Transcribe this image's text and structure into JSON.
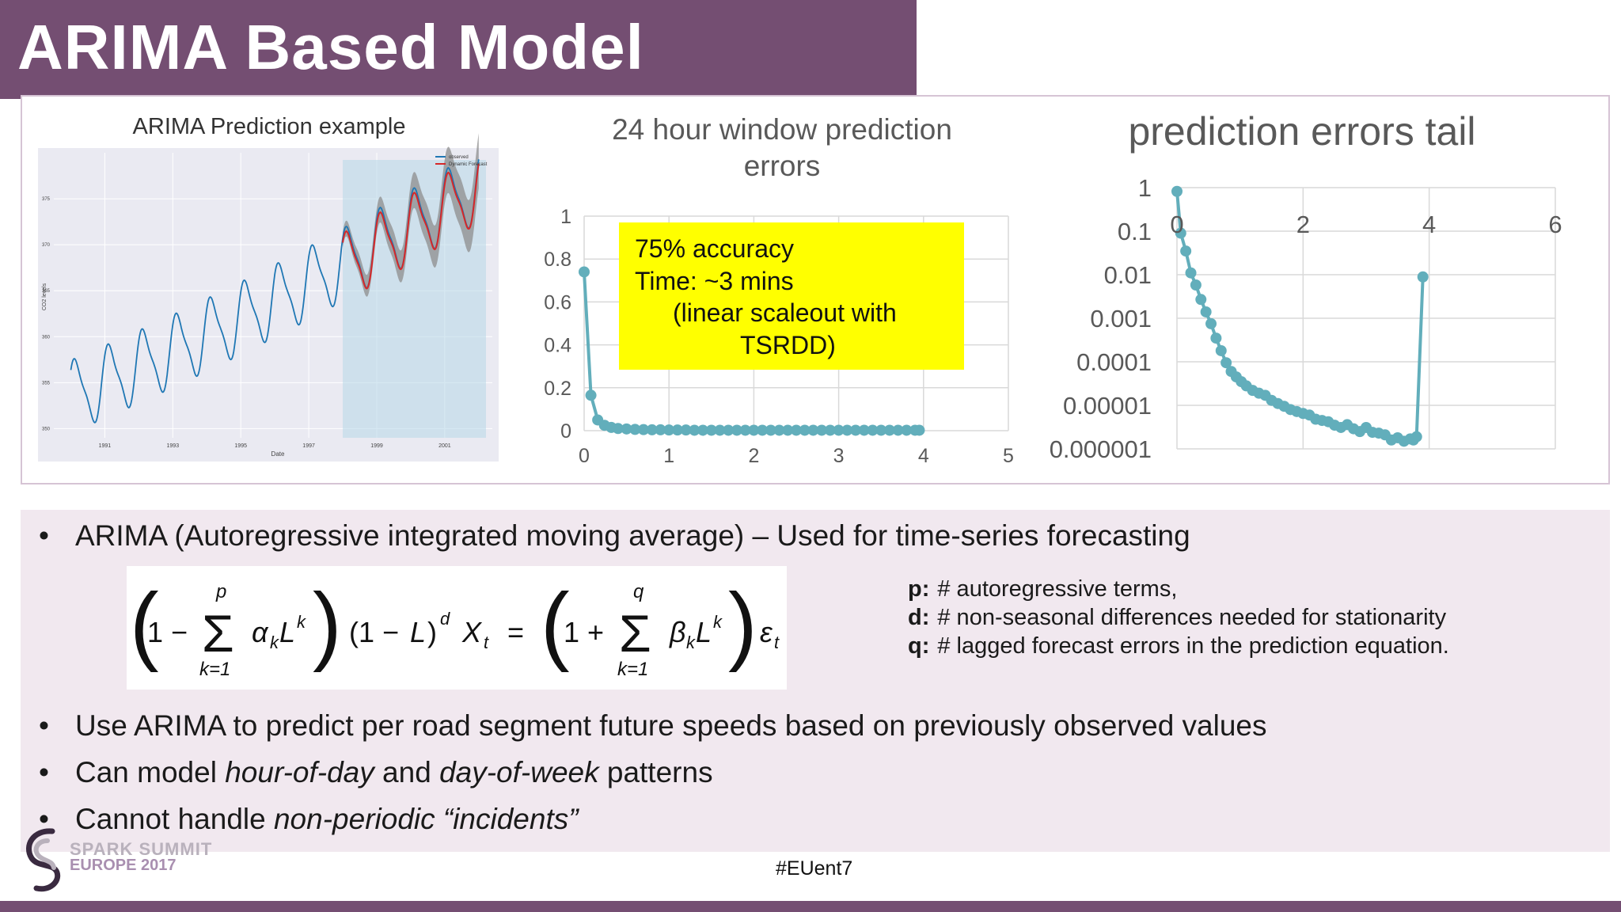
{
  "slide": {
    "title": "ARIMA Based Model",
    "hashtag": "#EUent7",
    "logo": {
      "line1": "SPARK SUMMIT",
      "line2": "EUROPE 2017"
    }
  },
  "colors": {
    "title_bg": "#744e72",
    "panel_bg": "#f1e8ef",
    "chart_teal": "#62aebb",
    "callout_yellow": "#ffff00",
    "observed": "#1f77b4",
    "forecast": "#d62728"
  },
  "chart_data": [
    {
      "type": "line",
      "title": "ARIMA Prediction example",
      "xlabel": "Date",
      "ylabel": "CO2 levels",
      "xlim": [
        1989.5,
        2002.4
      ],
      "ylim": [
        349,
        380
      ],
      "x_ticks": [
        "1991",
        "1993",
        "1995",
        "1997",
        "1999",
        "2001"
      ],
      "y_ticks": [
        "350",
        "355",
        "360",
        "365",
        "370",
        "375"
      ],
      "legend": [
        "observed",
        "Dynamic Forecast"
      ],
      "legend_position": "top-right",
      "grid": true,
      "forecast_region_start": 1998.0,
      "series": [
        {
          "name": "observed",
          "trend_start": 353.5,
          "trend_slope": 1.55,
          "seasonal_amplitude": 3.6,
          "x_start": 1990.0,
          "x_end": 2002.0
        },
        {
          "name": "Dynamic Forecast",
          "trend_start": 353.5,
          "trend_slope": 1.55,
          "seasonal_amplitude": 3.4,
          "x_start": 1998.0,
          "x_end": 2002.0
        }
      ]
    },
    {
      "type": "scatter",
      "title": "24 hour window prediction errors",
      "xlim": [
        0,
        5
      ],
      "ylim": [
        0,
        1
      ],
      "x_ticks": [
        "0",
        "1",
        "2",
        "3",
        "4",
        "5"
      ],
      "y_ticks": [
        "0",
        "0.2",
        "0.4",
        "0.6",
        "0.8",
        "1"
      ],
      "grid": true,
      "callout": {
        "line1": "75% accuracy",
        "line2": "Time: ~3 mins",
        "line3": "(linear scaleout with",
        "line4": "TSRDD)"
      },
      "x": [
        0.0,
        0.08,
        0.16,
        0.24,
        0.32,
        0.4,
        0.5,
        0.6,
        0.7,
        0.8,
        0.9,
        1.0,
        1.1,
        1.2,
        1.3,
        1.4,
        1.5,
        1.6,
        1.7,
        1.8,
        1.9,
        2.0,
        2.1,
        2.2,
        2.3,
        2.4,
        2.5,
        2.6,
        2.7,
        2.8,
        2.9,
        3.0,
        3.1,
        3.2,
        3.3,
        3.4,
        3.5,
        3.6,
        3.7,
        3.8,
        3.9,
        3.95
      ],
      "y": [
        0.74,
        0.165,
        0.05,
        0.025,
        0.015,
        0.01,
        0.008,
        0.006,
        0.005,
        0.004,
        0.004,
        0.003,
        0.003,
        0.003,
        0.002,
        0.002,
        0.002,
        0.002,
        0.002,
        0.002,
        0.002,
        0.002,
        0.002,
        0.002,
        0.002,
        0.002,
        0.002,
        0.002,
        0.002,
        0.002,
        0.002,
        0.002,
        0.002,
        0.002,
        0.002,
        0.002,
        0.002,
        0.002,
        0.002,
        0.002,
        0.002,
        0.002
      ]
    },
    {
      "type": "scatter",
      "title": "prediction errors tail",
      "xlim": [
        0,
        6
      ],
      "ylim": [
        1e-06,
        1
      ],
      "yscale": "log",
      "x_ticks": [
        "0",
        "2",
        "4",
        "6"
      ],
      "y_ticks": [
        "1",
        "0.1",
        "0.01",
        "0.001",
        "0.0001",
        "0.00001",
        "0.000001"
      ],
      "grid": true,
      "x": [
        0.0,
        0.06,
        0.14,
        0.22,
        0.3,
        0.38,
        0.46,
        0.54,
        0.62,
        0.7,
        0.78,
        0.86,
        0.94,
        1.02,
        1.1,
        1.2,
        1.3,
        1.4,
        1.5,
        1.6,
        1.7,
        1.8,
        1.9,
        2.0,
        2.1,
        2.2,
        2.3,
        2.4,
        2.5,
        2.6,
        2.7,
        2.8,
        2.9,
        3.0,
        3.1,
        3.2,
        3.3,
        3.4,
        3.5,
        3.6,
        3.7,
        3.75,
        3.8,
        3.9
      ],
      "y": [
        0.82,
        0.09,
        0.035,
        0.011,
        0.0058,
        0.0027,
        0.0014,
        0.00075,
        0.00035,
        0.00018,
        9.5e-05,
        6e-05,
        4.5e-05,
        3.5e-05,
        2.8e-05,
        2.2e-05,
        1.9e-05,
        1.7e-05,
        1.3e-05,
        1.1e-05,
        9.5e-06,
        8e-06,
        7.2e-06,
        6.5e-06,
        6e-06,
        4.8e-06,
        4.5e-06,
        4.2e-06,
        3.5e-06,
        3.1e-06,
        3.6e-06,
        2.9e-06,
        2.5e-06,
        3.1e-06,
        2.4e-06,
        2.3e-06,
        2.1e-06,
        1.6e-06,
        1.8e-06,
        1.5e-06,
        1.7e-06,
        1.6e-06,
        1.9e-06,
        0.0089
      ]
    }
  ],
  "content": {
    "bullet1": "ARIMA (Autoregressive integrated moving average) – Used for time-series forecasting",
    "formula": "(1 − Σ α_k L^k)(1 − L)^d X_t = (1 + Σ β_k L^k) ε_t",
    "params": [
      {
        "key": "p:",
        "text": "# autoregressive terms,"
      },
      {
        "key": "d:",
        "text": "# non-seasonal differences needed for stationarity"
      },
      {
        "key": "q:",
        "text": "# lagged forecast errors in the prediction equation."
      }
    ],
    "bullet2": "Use ARIMA to predict per road segment future speeds based on previously observed values",
    "bullet3": {
      "pre": "Can model ",
      "em1": "hour-of-day",
      "mid": " and ",
      "em2": "day-of-week",
      "post": " patterns"
    },
    "bullet4": {
      "pre": "Cannot handle ",
      "em": "non-periodic “incidents”"
    },
    "bullet_symbol": "•"
  }
}
